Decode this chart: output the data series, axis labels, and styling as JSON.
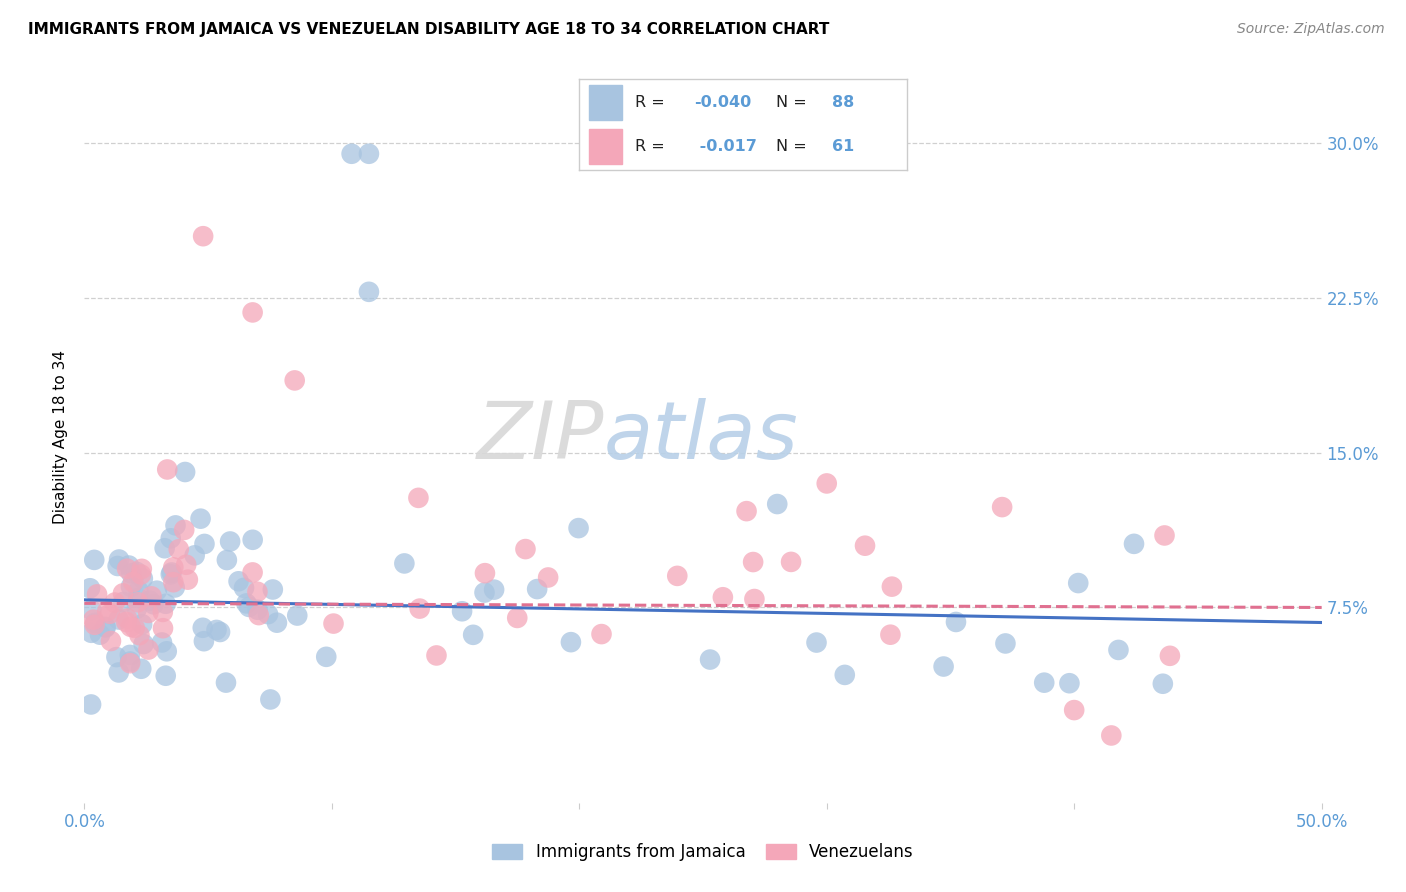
{
  "title": "IMMIGRANTS FROM JAMAICA VS VENEZUELAN DISABILITY AGE 18 TO 34 CORRELATION CHART",
  "source": "Source: ZipAtlas.com",
  "ylabel": "Disability Age 18 to 34",
  "xlim": [
    0.0,
    0.5
  ],
  "ylim_low": -0.02,
  "ylim_high": 0.335,
  "yticks": [
    0.075,
    0.15,
    0.225,
    0.3
  ],
  "ytick_labels": [
    "7.5%",
    "15.0%",
    "22.5%",
    "30.0%"
  ],
  "jamaica_R": "-0.040",
  "jamaica_N": "88",
  "venezuela_R": "-0.017",
  "venezuela_N": "61",
  "jamaica_color": "#a8c4e0",
  "venezuela_color": "#f4a7b9",
  "jamaica_line_color": "#4472c4",
  "venezuela_line_color": "#e07090",
  "axis_color": "#5b9bd5",
  "tick_color": "#5b9bd5",
  "legend_label_jamaica": "Immigrants from Jamaica",
  "legend_label_venezuela": "Venezuelans",
  "watermark_zip": "ZIP",
  "watermark_atlas": "atlas",
  "title_fontsize": 11,
  "source_fontsize": 10,
  "scatter_size": 220,
  "scatter_alpha": 0.75,
  "jamaica_line_start_y": 0.0785,
  "jamaica_line_slope": -0.022,
  "venezuela_line_start_y": 0.0768,
  "venezuela_line_slope": -0.004
}
